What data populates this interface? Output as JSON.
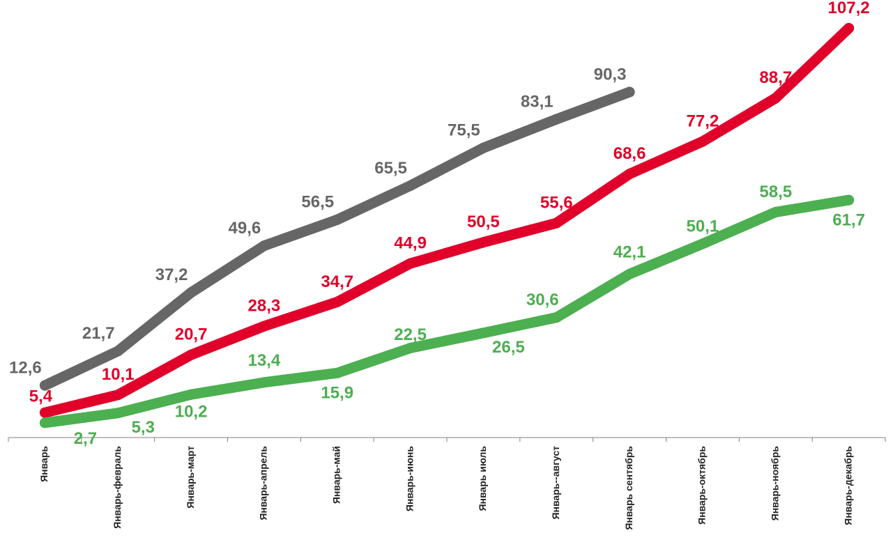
{
  "chart_data": {
    "type": "line",
    "categories": [
      "Январь",
      "Январь-февраль",
      "Январь-март",
      "Январь-апрель",
      "Январь-май",
      "Январь-июнь",
      "Январь июль",
      "Январь--август",
      "Январь сентябрь",
      "Январь-октябрь",
      "Январь-ноябрь",
      "Январь-декабрь"
    ],
    "ylim": [
      0,
      110
    ],
    "grid": false,
    "legend": "none",
    "series": [
      {
        "color": "#666666",
        "values": [
          12.6,
          21.7,
          37.2,
          49.6,
          56.5,
          65.5,
          75.5,
          83.1,
          90.3,
          null,
          null,
          null
        ],
        "labels": [
          "12,6",
          "21,7",
          "37,2",
          "49,6",
          "56,5",
          "65,5",
          "75,5",
          "83,1",
          "90,3",
          "",
          "",
          ""
        ]
      },
      {
        "color": "#e0002a",
        "values": [
          5.4,
          10.1,
          20.7,
          28.3,
          34.7,
          44.9,
          50.5,
          55.6,
          68.6,
          77.2,
          88.7,
          107.2
        ],
        "labels": [
          "5,4",
          "10,1",
          "20,7",
          "28,3",
          "34,7",
          "44,9",
          "50,5",
          "55,6",
          "68,6",
          "77,2",
          "88,7",
          "107,2"
        ]
      },
      {
        "color": "#4caf50",
        "values": [
          2.7,
          5.3,
          10.2,
          13.4,
          15.9,
          22.5,
          26.5,
          30.6,
          42.1,
          50.1,
          58.5,
          61.7
        ],
        "labels": [
          "2,7",
          "5,3",
          "10,2",
          "13,4",
          "15,9",
          "22,5",
          "26,5",
          "30,6",
          "42,1",
          "50,1",
          "58,5",
          "61,7"
        ]
      }
    ]
  }
}
